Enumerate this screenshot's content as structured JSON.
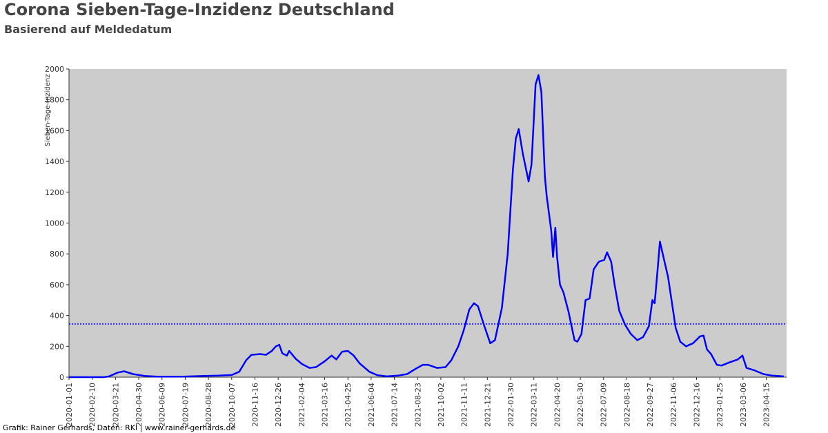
{
  "chart_data": {
    "type": "line",
    "title": "Corona Sieben-Tage-Inzidenz Deutschland",
    "subtitle": "Basierend auf Meldedatum",
    "ylabel": "Sieben-Tage-Inzidenz",
    "footer": "Grafik: Rainer Gerhards, Daten: RKI | www.rainer-gerhards.de",
    "x": [
      "2020-01-01",
      "2020-03-01",
      "2020-03-10",
      "2020-03-25",
      "2020-04-05",
      "2020-04-20",
      "2020-05-10",
      "2020-06-01",
      "2020-07-15",
      "2020-08-20",
      "2020-09-15",
      "2020-10-07",
      "2020-10-20",
      "2020-11-01",
      "2020-11-10",
      "2020-11-25",
      "2020-12-05",
      "2020-12-15",
      "2020-12-22",
      "2020-12-28",
      "2021-01-02",
      "2021-01-10",
      "2021-01-14",
      "2021-01-25",
      "2021-02-05",
      "2021-02-18",
      "2021-03-01",
      "2021-03-15",
      "2021-03-28",
      "2021-04-05",
      "2021-04-15",
      "2021-04-25",
      "2021-05-05",
      "2021-05-15",
      "2021-06-01",
      "2021-06-15",
      "2021-07-01",
      "2021-07-20",
      "2021-08-05",
      "2021-08-20",
      "2021-09-01",
      "2021-09-10",
      "2021-09-25",
      "2021-10-10",
      "2021-10-20",
      "2021-11-01",
      "2021-11-10",
      "2021-11-20",
      "2021-11-28",
      "2021-12-05",
      "2021-12-15",
      "2021-12-26",
      "2022-01-03",
      "2022-01-15",
      "2022-01-25",
      "2022-02-03",
      "2022-02-08",
      "2022-02-13",
      "2022-02-20",
      "2022-03-02",
      "2022-03-07",
      "2022-03-14",
      "2022-03-19",
      "2022-03-24",
      "2022-03-30",
      "2022-04-02",
      "2022-04-10",
      "2022-04-13",
      "2022-04-17",
      "2022-04-20",
      "2022-04-25",
      "2022-05-01",
      "2022-05-10",
      "2022-05-20",
      "2022-05-25",
      "2022-06-01",
      "2022-06-08",
      "2022-06-15",
      "2022-06-22",
      "2022-07-01",
      "2022-07-10",
      "2022-07-15",
      "2022-07-22",
      "2022-07-28",
      "2022-08-05",
      "2022-08-15",
      "2022-08-25",
      "2022-09-05",
      "2022-09-15",
      "2022-09-25",
      "2022-10-01",
      "2022-10-05",
      "2022-10-10",
      "2022-10-14",
      "2022-10-20",
      "2022-10-28",
      "2022-11-05",
      "2022-11-10",
      "2022-11-18",
      "2022-11-28",
      "2022-12-10",
      "2022-12-22",
      "2022-12-28",
      "2023-01-03",
      "2023-01-10",
      "2023-01-20",
      "2023-01-28",
      "2023-02-10",
      "2023-02-25",
      "2023-03-05",
      "2023-03-12",
      "2023-03-25",
      "2023-04-10",
      "2023-04-25",
      "2023-05-15"
    ],
    "series": [
      {
        "name": "Sieben-Tage-Inzidenz",
        "color": "#0000ff",
        "values": [
          0,
          0,
          5,
          30,
          38,
          20,
          8,
          3,
          3,
          8,
          10,
          14,
          35,
          110,
          145,
          150,
          145,
          170,
          200,
          210,
          155,
          140,
          170,
          120,
          85,
          60,
          65,
          100,
          140,
          115,
          165,
          170,
          140,
          90,
          35,
          12,
          5,
          10,
          20,
          55,
          80,
          80,
          60,
          65,
          110,
          200,
          300,
          440,
          480,
          460,
          340,
          220,
          240,
          450,
          800,
          1350,
          1550,
          1610,
          1450,
          1270,
          1380,
          1900,
          1960,
          1850,
          1300,
          1180,
          950,
          780,
          970,
          780,
          600,
          550,
          420,
          240,
          230,
          280,
          500,
          510,
          700,
          750,
          760,
          810,
          750,
          600,
          430,
          340,
          280,
          240,
          260,
          330,
          500,
          480,
          700,
          880,
          780,
          650,
          450,
          320,
          230,
          200,
          220,
          265,
          270,
          180,
          150,
          80,
          75,
          95,
          115,
          140,
          60,
          45,
          20,
          10,
          5
        ]
      }
    ],
    "reference_line": {
      "value": 345,
      "color": "#0000ff"
    },
    "xlim": [
      "2020-01-01",
      "2023-05-20"
    ],
    "xticks": [
      "2020-01-01",
      "2020-02-10",
      "2020-03-21",
      "2020-04-30",
      "2020-06-09",
      "2020-07-19",
      "2020-08-28",
      "2020-10-07",
      "2020-11-16",
      "2020-12-26",
      "2021-02-04",
      "2021-03-16",
      "2021-04-25",
      "2021-06-04",
      "2021-07-14",
      "2021-08-23",
      "2021-10-02",
      "2021-11-11",
      "2021-12-21",
      "2022-01-30",
      "2022-03-11",
      "2022-04-20",
      "2022-05-30",
      "2022-07-09",
      "2022-08-18",
      "2022-09-27",
      "2022-11-06",
      "2022-12-16",
      "2023-01-25",
      "2023-03-06",
      "2023-04-15"
    ],
    "ylim": [
      0,
      2000
    ],
    "yticks": [
      0,
      200,
      400,
      600,
      800,
      1000,
      1200,
      1400,
      1600,
      1800,
      2000
    ],
    "plot_background": "#cccccc"
  }
}
